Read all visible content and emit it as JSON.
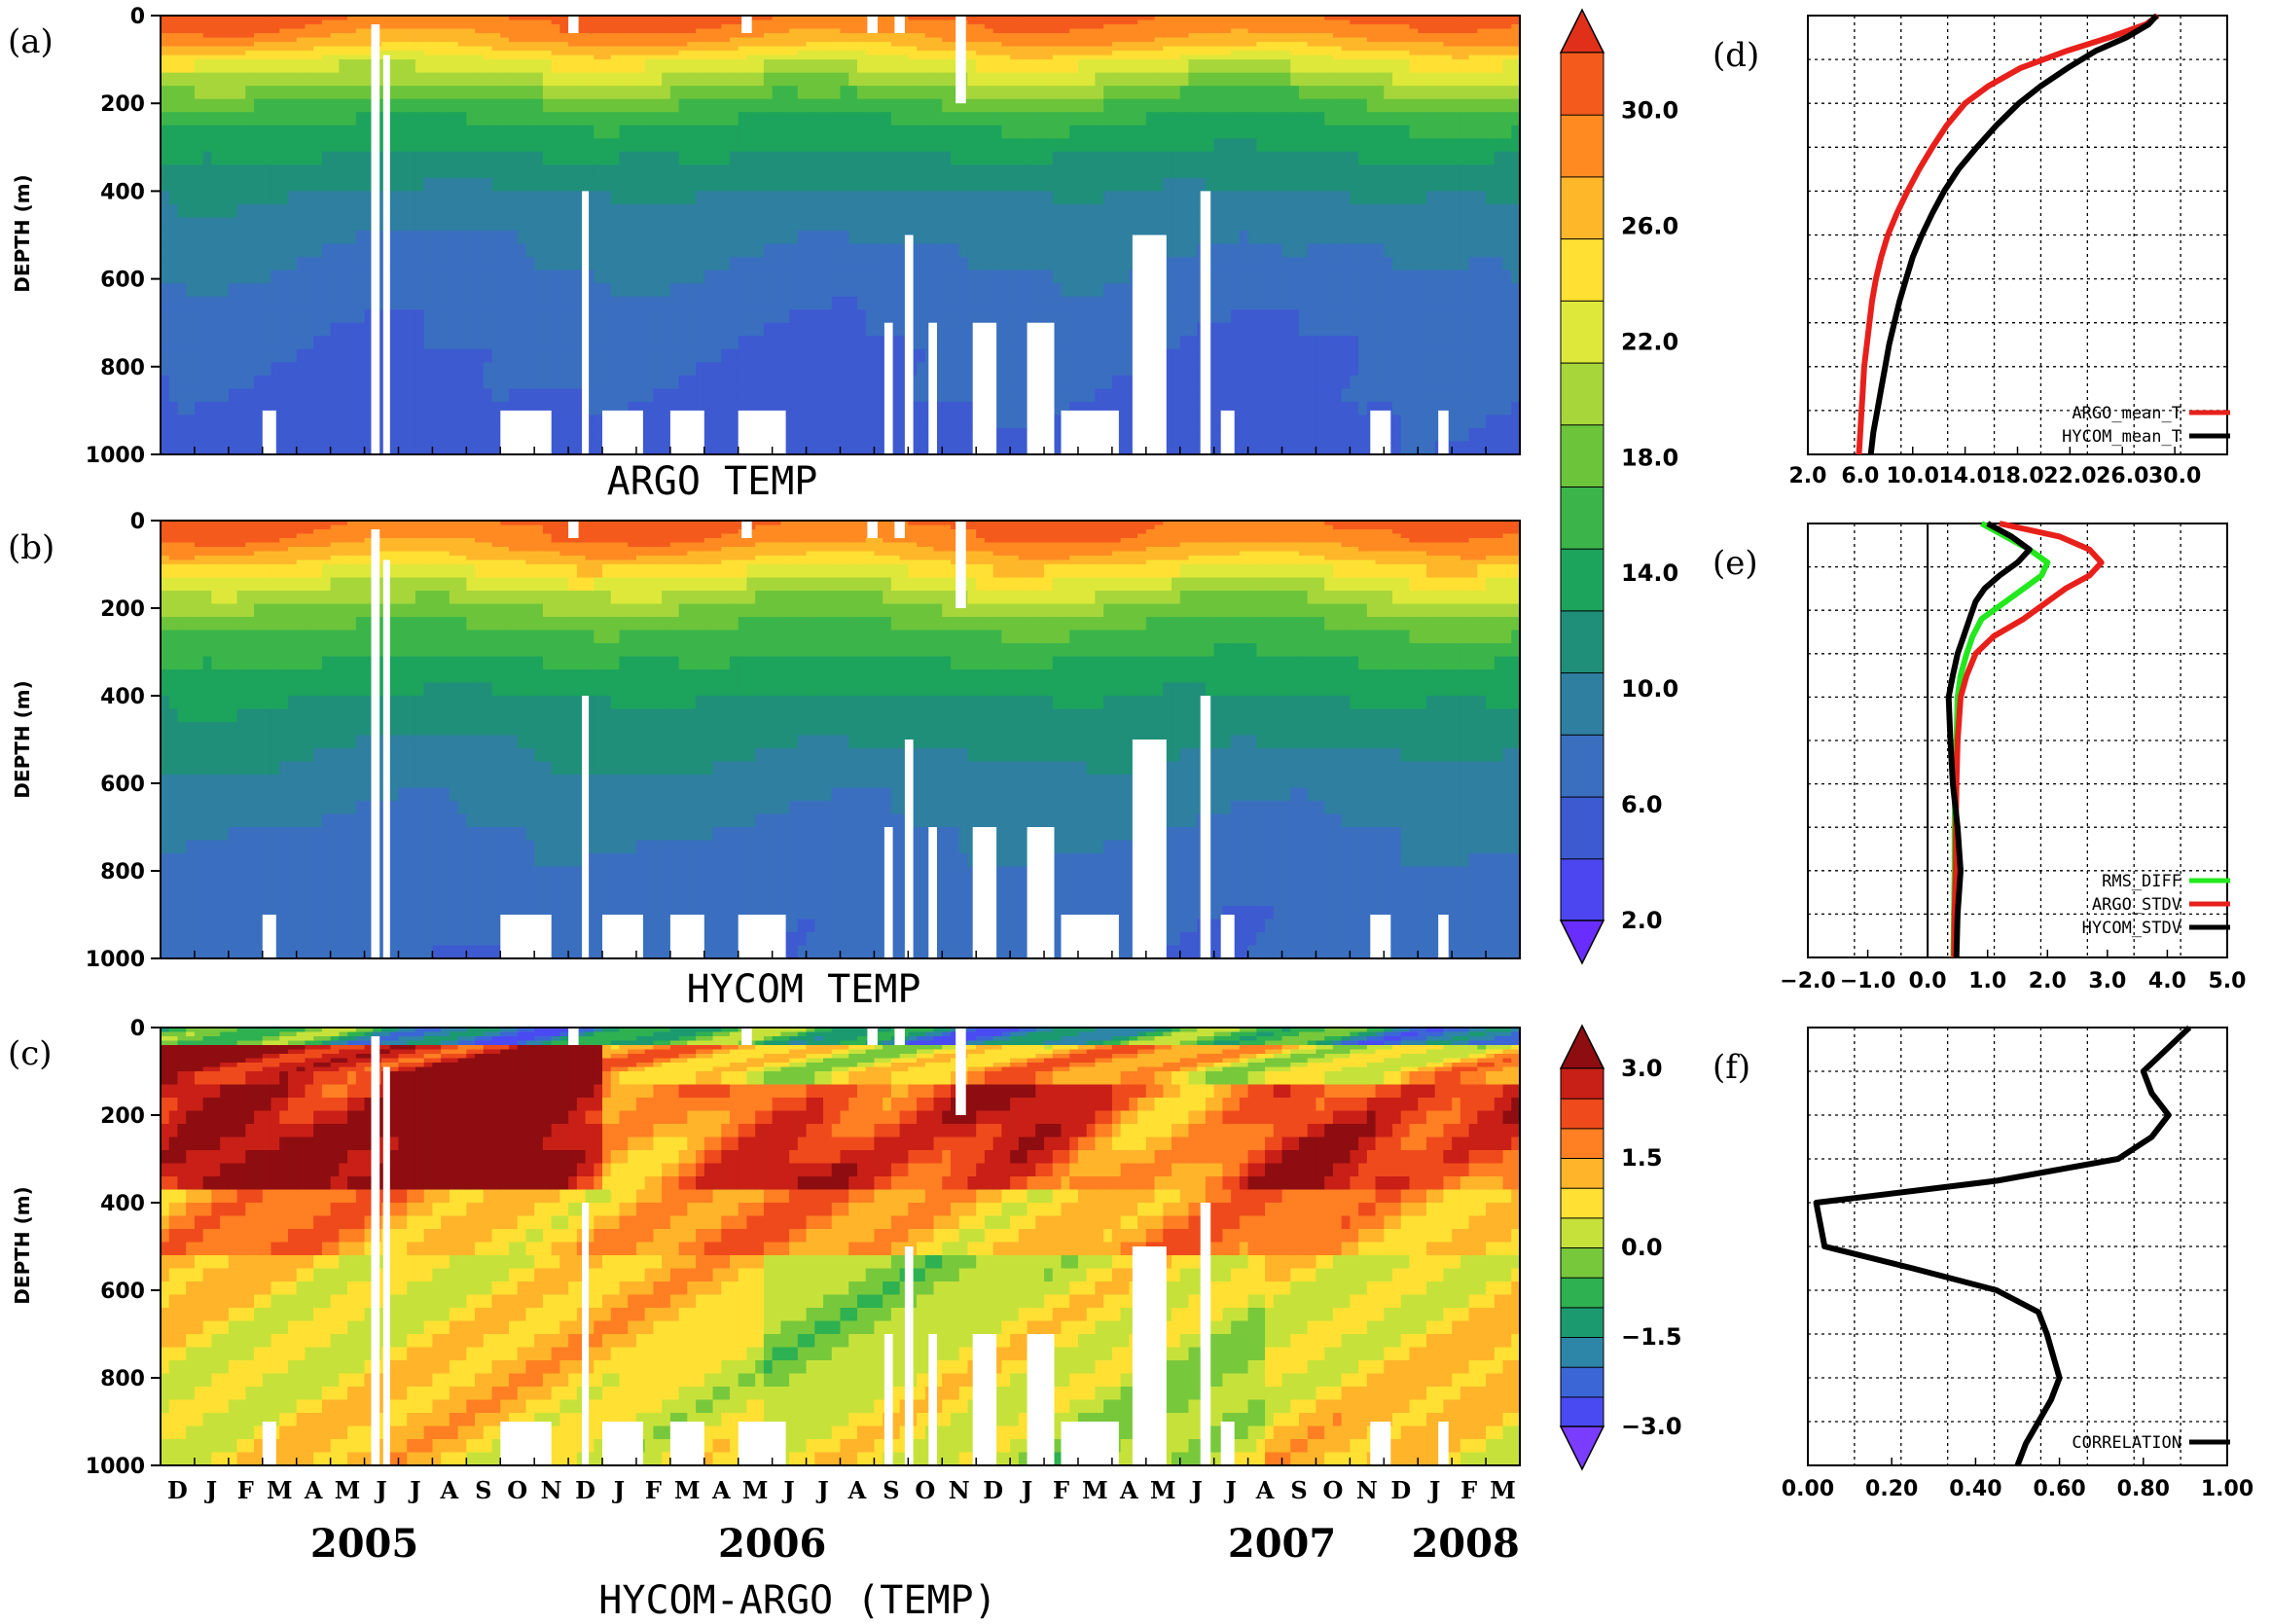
{
  "chart_data": [
    {
      "id": "a",
      "type": "heatmap",
      "panel_label": "(a)",
      "title": "ARGO TEMP",
      "ylabel": "DEPTH (m)",
      "ylim": [
        0,
        1000
      ],
      "yticks": [
        "0",
        "200",
        "400",
        "600",
        "800",
        "1000"
      ],
      "variable": "temperature",
      "color_levels": [
        2,
        4,
        6,
        8,
        10,
        12,
        14,
        16,
        18,
        20,
        22,
        24,
        26,
        28,
        30
      ],
      "depth_isotherms": {
        "depth": [
          0,
          50,
          100,
          200,
          300,
          400,
          500,
          600,
          700,
          800,
          900,
          1000
        ],
        "temperature": [
          28.5,
          26.5,
          22.0,
          15.5,
          12.5,
          10.0,
          8.5,
          7.5,
          6.5,
          6.0,
          5.6,
          5.3
        ]
      }
    },
    {
      "id": "b",
      "type": "heatmap",
      "panel_label": "(b)",
      "title": "HYCOM TEMP",
      "ylabel": "DEPTH (m)",
      "ylim": [
        0,
        1000
      ],
      "yticks": [
        "0",
        "200",
        "400",
        "600",
        "800",
        "1000"
      ],
      "variable": "temperature",
      "color_levels": [
        2,
        4,
        6,
        8,
        10,
        12,
        14,
        16,
        18,
        20,
        22,
        24,
        26,
        28,
        30
      ],
      "depth_isotherms": {
        "depth": [
          0,
          50,
          100,
          200,
          300,
          400,
          500,
          600,
          700,
          800,
          900,
          1000
        ],
        "temperature": [
          28.5,
          27.0,
          23.5,
          17.5,
          14.5,
          12.0,
          10.5,
          9.0,
          8.0,
          7.2,
          6.6,
          6.2
        ]
      }
    },
    {
      "id": "c",
      "type": "heatmap",
      "panel_label": "(c)",
      "title": "HYCOM-ARGO (TEMP)",
      "ylabel": "DEPTH (m)",
      "ylim": [
        0,
        1000
      ],
      "yticks": [
        "0",
        "200",
        "400",
        "600",
        "800",
        "1000"
      ],
      "variable": "temperature difference",
      "color_levels": [
        -3.0,
        -2.5,
        -2.0,
        -1.5,
        -1.0,
        -0.5,
        0.0,
        0.5,
        1.0,
        1.5,
        2.0,
        2.5,
        3.0
      ],
      "months": [
        "D",
        "J",
        "F",
        "M",
        "A",
        "M",
        "J",
        "J",
        "A",
        "S",
        "O",
        "N",
        "D",
        "J",
        "F",
        "M",
        "A",
        "M",
        "J",
        "J",
        "A",
        "S",
        "O",
        "N",
        "D",
        "J",
        "F",
        "M",
        "A",
        "M",
        "J",
        "J",
        "A",
        "S",
        "O",
        "N",
        "D",
        "J",
        "F",
        "M"
      ],
      "years": [
        {
          "label": "2005",
          "month_index": 6
        },
        {
          "label": "2006",
          "month_index": 18
        },
        {
          "label": "2007",
          "month_index": 33
        },
        {
          "label": "2008",
          "month_index": 38.4
        }
      ]
    },
    {
      "id": "d",
      "type": "line",
      "panel_label": "(d)",
      "xlim": [
        2,
        34
      ],
      "xticks": [
        "2.0",
        "6.0",
        "10.0",
        "14.0",
        "18.0",
        "22.0",
        "26.0",
        "30.0"
      ],
      "xtick_values": [
        2,
        6,
        10,
        14,
        18,
        22,
        26,
        30
      ],
      "ylim": [
        0,
        1000
      ],
      "grid": true,
      "series": [
        {
          "name": "ARGO_mean_T",
          "color": "#e8201b",
          "depth": [
            0,
            20,
            50,
            80,
            120,
            160,
            200,
            250,
            300,
            350,
            400,
            450,
            500,
            550,
            600,
            650,
            700,
            750,
            800,
            850,
            900,
            950,
            1000
          ],
          "values": [
            28.7,
            27.8,
            25.0,
            21.8,
            18.2,
            15.8,
            14.0,
            12.6,
            11.5,
            10.5,
            9.6,
            8.8,
            8.1,
            7.6,
            7.2,
            6.9,
            6.7,
            6.5,
            6.3,
            6.2,
            6.1,
            6.0,
            5.9
          ]
        },
        {
          "name": "HYCOM_mean_T",
          "color": "#000000",
          "depth": [
            0,
            20,
            50,
            80,
            120,
            160,
            200,
            250,
            300,
            350,
            400,
            450,
            500,
            550,
            600,
            650,
            700,
            750,
            800,
            850,
            900,
            950,
            1000
          ],
          "values": [
            28.6,
            28.0,
            26.3,
            24.0,
            21.8,
            19.8,
            18.1,
            16.4,
            14.9,
            13.5,
            12.4,
            11.5,
            10.7,
            10.0,
            9.5,
            9.0,
            8.6,
            8.2,
            7.9,
            7.6,
            7.3,
            7.0,
            6.8
          ]
        }
      ]
    },
    {
      "id": "e",
      "type": "line",
      "panel_label": "(e)",
      "xlim": [
        -2,
        5
      ],
      "xticks": [
        "−2.0",
        "−1.0",
        "0.0",
        "1.0",
        "2.0",
        "3.0",
        "4.0",
        "5.0"
      ],
      "xtick_values": [
        -2,
        -1,
        0,
        1,
        2,
        3,
        4,
        5
      ],
      "ylim": [
        0,
        1000
      ],
      "grid": true,
      "series": [
        {
          "name": "RMS_DIFF",
          "color": "#22e81e",
          "depth": [
            0,
            30,
            60,
            90,
            120,
            150,
            180,
            220,
            260,
            300,
            350,
            400,
            500,
            600,
            700,
            800,
            900,
            1000
          ],
          "values": [
            0.9,
            1.3,
            1.7,
            2.0,
            1.9,
            1.6,
            1.3,
            0.9,
            0.75,
            0.65,
            0.55,
            0.5,
            0.48,
            0.46,
            0.45,
            0.45,
            0.44,
            0.43
          ]
        },
        {
          "name": "ARGO_STDV",
          "color": "#e8201b",
          "depth": [
            0,
            30,
            60,
            90,
            120,
            150,
            180,
            220,
            260,
            300,
            350,
            400,
            500,
            600,
            700,
            800,
            900,
            1000
          ],
          "values": [
            1.2,
            2.2,
            2.7,
            2.9,
            2.7,
            2.3,
            2.0,
            1.6,
            1.1,
            0.8,
            0.65,
            0.55,
            0.5,
            0.48,
            0.47,
            0.47,
            0.45,
            0.44
          ]
        },
        {
          "name": "HYCOM_STDV",
          "color": "#000000",
          "depth": [
            0,
            30,
            60,
            90,
            120,
            150,
            180,
            220,
            260,
            300,
            350,
            400,
            500,
            600,
            700,
            800,
            900,
            1000
          ],
          "values": [
            1.0,
            1.4,
            1.7,
            1.5,
            1.2,
            0.95,
            0.8,
            0.7,
            0.6,
            0.5,
            0.42,
            0.35,
            0.38,
            0.42,
            0.5,
            0.55,
            0.5,
            0.48
          ]
        }
      ]
    },
    {
      "id": "f",
      "type": "line",
      "panel_label": "(f)",
      "xlim": [
        0,
        1
      ],
      "xticks": [
        "0.00",
        "0.20",
        "0.40",
        "0.60",
        "0.80",
        "1.00"
      ],
      "xtick_values": [
        0,
        0.2,
        0.4,
        0.6,
        0.8,
        1.0
      ],
      "ylim": [
        0,
        1000
      ],
      "grid": true,
      "series": [
        {
          "name": "CORRELATION",
          "color": "#000000",
          "depth": [
            0,
            100,
            150,
            200,
            250,
            300,
            350,
            400,
            500,
            550,
            600,
            650,
            700,
            800,
            850,
            900,
            950,
            1000
          ],
          "values": [
            0.91,
            0.8,
            0.82,
            0.86,
            0.82,
            0.74,
            0.45,
            0.02,
            0.04,
            0.25,
            0.45,
            0.55,
            0.57,
            0.6,
            0.58,
            0.55,
            0.52,
            0.5
          ]
        }
      ]
    }
  ],
  "colorbars": [
    {
      "id": "temp",
      "labels": [
        "30.0",
        "26.0",
        "22.0",
        "18.0",
        "14.0",
        "10.0",
        "6.0",
        "2.0"
      ],
      "label_values": [
        30,
        26,
        22,
        18,
        14,
        10,
        6,
        2
      ],
      "min": 2,
      "max": 32
    },
    {
      "id": "diff",
      "labels": [
        "3.0",
        "1.5",
        "0.0",
        "−1.5",
        "−3.0"
      ],
      "label_values": [
        3.0,
        1.5,
        0.0,
        -1.5,
        -3.0
      ],
      "min": -3.0,
      "max": 3.0
    }
  ],
  "colors": {
    "temp_palette": [
      "#6a2dff",
      "#4b46f0",
      "#3d5ad0",
      "#3a6fc0",
      "#2e7fa0",
      "#1f8f7a",
      "#1ca35c",
      "#3bb54a",
      "#6cc43b",
      "#a7d63a",
      "#dde83a",
      "#ffe033",
      "#ffb72a",
      "#ff8a22",
      "#f45a1c",
      "#e0301a"
    ],
    "diff_palette": [
      "#7a3dff",
      "#4a4af2",
      "#3b66d6",
      "#2d85a8",
      "#1b9a70",
      "#2eb150",
      "#78c83c",
      "#c6e23a",
      "#ffe033",
      "#ffb42a",
      "#ff7f22",
      "#ef4a1c",
      "#c81f17",
      "#8e0d10"
    ]
  }
}
